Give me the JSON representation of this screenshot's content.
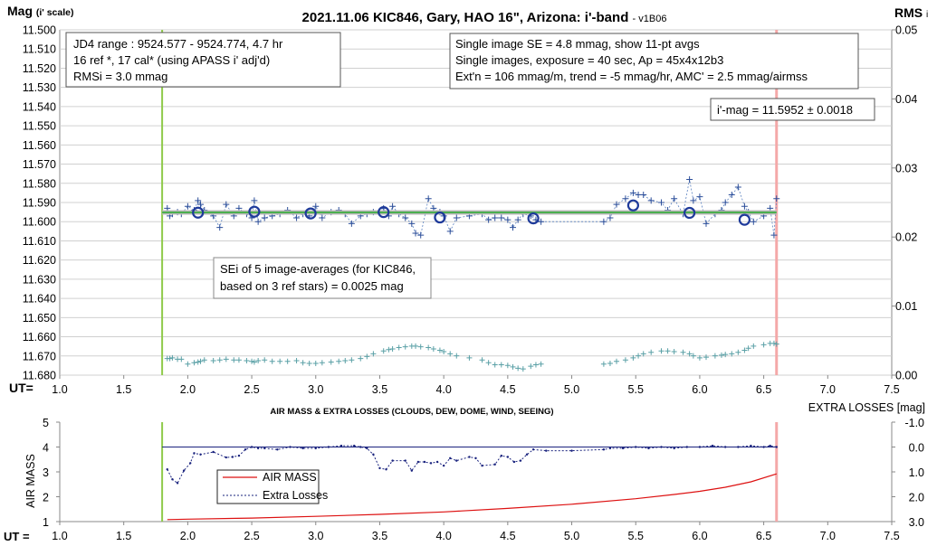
{
  "chart_data": [
    {
      "type": "scatter",
      "title": "2021.11.06 KIC846, Gary, HAO 16\", Arizona: i'-band",
      "title_version": "- v1B06",
      "ylabel": "Mag",
      "ylabel_unit": "(i' scale)",
      "y2label": "RMS",
      "y2label_sub": "i",
      "xlabel": "UT=",
      "xlim": [
        1.0,
        7.5
      ],
      "ylim": [
        11.68,
        11.5
      ],
      "y_ticks": [
        "11.500",
        "11.510",
        "11.520",
        "11.530",
        "11.540",
        "11.550",
        "11.560",
        "11.570",
        "11.580",
        "11.590",
        "11.600",
        "11.610",
        "11.620",
        "11.630",
        "11.640",
        "11.650",
        "11.660",
        "11.670",
        "11.680"
      ],
      "y2lim": [
        0.0,
        0.05
      ],
      "y2_ticks": [
        "0.05",
        "0.04",
        "0.03",
        "0.02",
        "0.01",
        "0.00"
      ],
      "x_ticks": [
        "1.0",
        "1.5",
        "2.0",
        "2.5",
        "3.0",
        "3.5",
        "4.0",
        "4.5",
        "5.0",
        "5.5",
        "6.0",
        "6.5",
        "7.0",
        "7.5"
      ],
      "vlines": [
        1.8,
        6.6
      ],
      "mean_mag": 11.5952,
      "annotations": {
        "box1": [
          "JD4 range : 9524.577 - 9524.774, 4.7  hr",
          "16 ref *, 17 cal* (using APASS i' adj'd)",
          "RMSi = 3.0 mmag"
        ],
        "box2": [
          "Single image SE = 4.8 mmag, show 11-pt avgs",
          "Single images, exposure = 40 sec, Ap = 45x4x12b3",
          "Ext'n = 106 mmag/m, trend = -5 mmag/hr, AMC' = 2.5 mmag/airmss"
        ],
        "box3": "i'-mag = 11.5952 ± 0.0018",
        "box4": [
          "SEi of 5 image-averages (for KIC846,",
          "based on 3 ref stars) = 0.0025 mag"
        ]
      },
      "series": [
        {
          "x": [
            1.84,
            1.86,
            1.88,
            1.92,
            1.95,
            2.0,
            2.05,
            2.08,
            2.1,
            2.13,
            2.2,
            2.25,
            2.3,
            2.36,
            2.4,
            2.46,
            2.5,
            2.52,
            2.55,
            2.6,
            2.66,
            2.72,
            2.78,
            2.85,
            2.9,
            2.95,
            3.0,
            3.05,
            3.12,
            3.18,
            3.23,
            3.28,
            3.35,
            3.4,
            3.45,
            3.53,
            3.57,
            3.6,
            3.65,
            3.7,
            3.75,
            3.78,
            3.82,
            3.88,
            3.92,
            3.97,
            4.0,
            4.05,
            4.1,
            4.2,
            4.3,
            4.35,
            4.4,
            4.45,
            4.5,
            4.54,
            4.58,
            4.62,
            4.68,
            4.72,
            4.76,
            5.25,
            5.3,
            5.35,
            5.42,
            5.48,
            5.52,
            5.56,
            5.62,
            5.7,
            5.75,
            5.8,
            5.87,
            5.92,
            5.95,
            6.0,
            6.05,
            6.12,
            6.17,
            6.2,
            6.25,
            6.3,
            6.35,
            6.38,
            6.42,
            6.5,
            6.55,
            6.58,
            6.6
          ],
          "y": [
            11.593,
            11.597,
            11.596,
            11.595,
            11.596,
            11.592,
            11.594,
            11.589,
            11.591,
            11.594,
            11.597,
            11.603,
            11.591,
            11.597,
            11.593,
            11.596,
            11.598,
            11.589,
            11.6,
            11.598,
            11.597,
            11.596,
            11.594,
            11.598,
            11.596,
            11.597,
            11.592,
            11.598,
            11.595,
            11.594,
            11.596,
            11.601,
            11.597,
            11.596,
            11.595,
            11.593,
            11.597,
            11.592,
            11.596,
            11.598,
            11.601,
            11.606,
            11.607,
            11.588,
            11.593,
            11.595,
            11.597,
            11.605,
            11.598,
            11.597,
            11.596,
            11.599,
            11.598,
            11.598,
            11.599,
            11.603,
            11.599,
            11.596,
            11.597,
            11.599,
            11.6,
            11.6,
            11.598,
            11.591,
            11.588,
            11.585,
            11.586,
            11.586,
            11.589,
            11.59,
            11.594,
            11.588,
            11.596,
            11.578,
            11.589,
            11.587,
            11.601,
            11.596,
            11.594,
            11.59,
            11.586,
            11.582,
            11.592,
            11.595,
            11.6,
            11.597,
            11.593,
            11.607,
            11.588
          ],
          "rms": [
            0.0024,
            0.0024,
            0.0025,
            0.0023,
            0.0023,
            0.0016,
            0.0018,
            0.0019,
            0.002,
            0.0022,
            0.0021,
            0.0022,
            0.0023,
            0.0022,
            0.0022,
            0.0021,
            0.002,
            0.0019,
            0.0021,
            0.0022,
            0.002,
            0.002,
            0.002,
            0.0021,
            0.0018,
            0.0017,
            0.0017,
            0.0018,
            0.0019,
            0.002,
            0.0021,
            0.0022,
            0.0024,
            0.0027,
            0.0031,
            0.0035,
            0.0037,
            0.0038,
            0.004,
            0.0041,
            0.0042,
            0.0042,
            0.0041,
            0.004,
            0.0038,
            0.0036,
            0.0034,
            0.0031,
            0.0028,
            0.0025,
            0.0022,
            0.0018,
            0.0015,
            0.0015,
            0.0014,
            0.0012,
            0.001,
            0.0009,
            0.0013,
            0.0015,
            0.0016,
            0.0016,
            0.0017,
            0.002,
            0.0022,
            0.0025,
            0.0028,
            0.0031,
            0.0033,
            0.0035,
            0.0035,
            0.0034,
            0.0033,
            0.0031,
            0.0028,
            0.0025,
            0.0026,
            0.0028,
            0.0029,
            0.003,
            0.0031,
            0.0033,
            0.0036,
            0.0039,
            0.0042,
            0.0044,
            0.0046,
            0.0046,
            0.0045
          ]
        },
        {
          "x": [
            2.08,
            2.52,
            2.96,
            3.53,
            3.97,
            4.7,
            5.48,
            5.92,
            6.35
          ],
          "y": [
            11.5953,
            11.5948,
            11.5957,
            11.595,
            11.5978,
            11.5983,
            11.5915,
            11.5954,
            11.599
          ]
        }
      ]
    },
    {
      "type": "line",
      "title": "AIR MASS & EXTRA LOSSES (CLOUDS, DEW, DOME, WIND, SEEING)",
      "ylabel": "AIR MASS",
      "y2label": "EXTRA LOSSES [mag]",
      "xlabel": "UT =",
      "xlim": [
        1.0,
        7.5
      ],
      "ylim": [
        1,
        5
      ],
      "y_ticks": [
        "1",
        "2",
        "3",
        "4",
        "5"
      ],
      "y2lim": [
        3.0,
        -1.0
      ],
      "y2_ticks": [
        "-1.0",
        "0.0",
        "1.0",
        "2.0",
        "3.0"
      ],
      "x_ticks": [
        "1.0",
        "1.5",
        "2.0",
        "2.5",
        "3.0",
        "3.5",
        "4.0",
        "4.5",
        "5.0",
        "5.5",
        "6.0",
        "6.5",
        "7.0",
        "7.5"
      ],
      "vlines": [
        1.8,
        6.6
      ],
      "reference_line": 0.0,
      "legend": {
        "position": "lower-left",
        "items": [
          "AIR MASS",
          "Extra Losses"
        ]
      },
      "series": [
        {
          "name": "AIR MASS",
          "color": "#dd1111",
          "x": [
            1.84,
            2.0,
            2.5,
            3.0,
            3.5,
            4.0,
            4.5,
            5.0,
            5.5,
            5.8,
            6.0,
            6.2,
            6.4,
            6.6
          ],
          "y": [
            1.08,
            1.1,
            1.14,
            1.21,
            1.29,
            1.39,
            1.53,
            1.7,
            1.92,
            2.09,
            2.22,
            2.38,
            2.6,
            2.92
          ]
        },
        {
          "name": "Extra Losses",
          "color": "#1a237e",
          "x": [
            1.84,
            1.88,
            1.92,
            1.97,
            2.02,
            2.05,
            2.1,
            2.2,
            2.3,
            2.35,
            2.4,
            2.45,
            2.5,
            2.55,
            2.6,
            2.7,
            2.8,
            2.9,
            3.0,
            3.1,
            3.2,
            3.3,
            3.35,
            3.4,
            3.45,
            3.5,
            3.55,
            3.6,
            3.7,
            3.75,
            3.8,
            3.85,
            3.9,
            3.95,
            4.0,
            4.05,
            4.1,
            4.2,
            4.25,
            4.3,
            4.4,
            4.45,
            4.5,
            4.55,
            4.6,
            4.65,
            4.7,
            4.8,
            5.0,
            5.25,
            5.3,
            5.4,
            5.5,
            5.6,
            5.7,
            5.8,
            5.9,
            6.0,
            6.1,
            6.2,
            6.3,
            6.4,
            6.5,
            6.55,
            6.6
          ],
          "y": [
            0.9,
            1.3,
            1.45,
            0.95,
            0.65,
            0.25,
            0.3,
            0.2,
            0.42,
            0.4,
            0.35,
            0.1,
            0.0,
            0.05,
            0.05,
            0.1,
            0.0,
            0.05,
            0.05,
            0.0,
            -0.05,
            -0.05,
            0.0,
            0.05,
            0.3,
            0.85,
            0.9,
            0.55,
            0.55,
            0.95,
            0.6,
            0.6,
            0.65,
            0.6,
            0.75,
            0.45,
            0.55,
            0.4,
            0.45,
            0.75,
            0.7,
            0.35,
            0.4,
            0.6,
            0.55,
            0.3,
            0.1,
            0.15,
            0.15,
            0.1,
            0.05,
            0.05,
            0.0,
            0.05,
            0.0,
            0.05,
            0.0,
            0.0,
            -0.05,
            0.0,
            0.0,
            -0.05,
            0.0,
            -0.05,
            0.0
          ]
        }
      ]
    }
  ]
}
